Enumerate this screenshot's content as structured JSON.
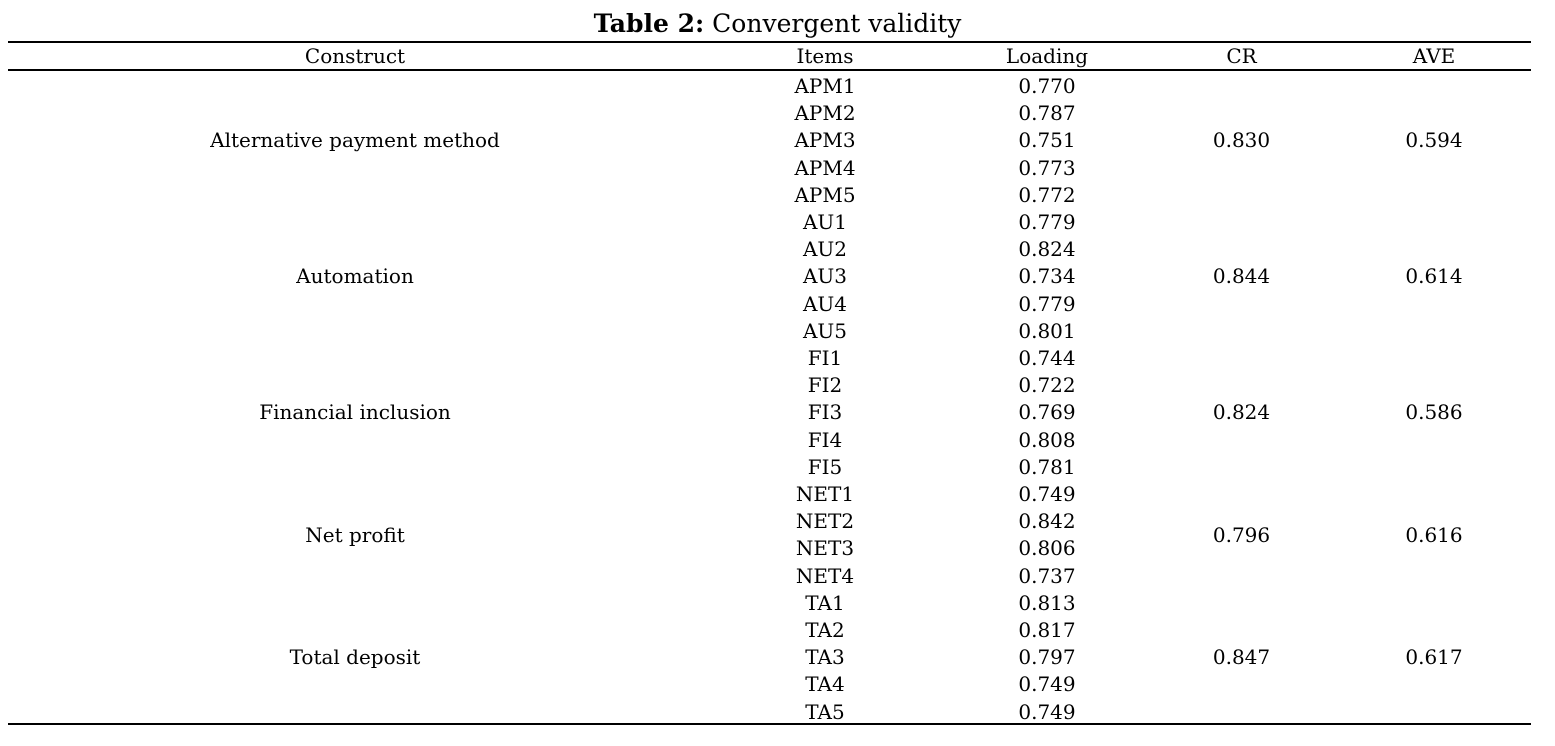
{
  "caption": {
    "label": "Table 2:",
    "text": "Convergent validity"
  },
  "headers": {
    "construct": "Construct",
    "items": "Items",
    "loading": "Loading",
    "cr": "CR",
    "ave": "AVE"
  },
  "groups": [
    {
      "construct": "Alternative payment method",
      "cr": "0.830",
      "ave": "0.594",
      "rows": [
        {
          "item": "APM1",
          "loading": "0.770"
        },
        {
          "item": "APM2",
          "loading": "0.787"
        },
        {
          "item": "APM3",
          "loading": "0.751"
        },
        {
          "item": "APM4",
          "loading": "0.773"
        },
        {
          "item": "APM5",
          "loading": "0.772"
        }
      ]
    },
    {
      "construct": "Automation",
      "cr": "0.844",
      "ave": "0.614",
      "rows": [
        {
          "item": "AU1",
          "loading": "0.779"
        },
        {
          "item": "AU2",
          "loading": "0.824"
        },
        {
          "item": "AU3",
          "loading": "0.734"
        },
        {
          "item": "AU4",
          "loading": "0.779"
        },
        {
          "item": "AU5",
          "loading": "0.801"
        }
      ]
    },
    {
      "construct": "Financial inclusion",
      "cr": "0.824",
      "ave": "0.586",
      "rows": [
        {
          "item": "FI1",
          "loading": "0.744"
        },
        {
          "item": "FI2",
          "loading": "0.722"
        },
        {
          "item": "FI3",
          "loading": "0.769"
        },
        {
          "item": "FI4",
          "loading": "0.808"
        },
        {
          "item": "FI5",
          "loading": "0.781"
        }
      ]
    },
    {
      "construct": "Net profit",
      "cr": "0.796",
      "ave": "0.616",
      "rows": [
        {
          "item": "NET1",
          "loading": "0.749"
        },
        {
          "item": "NET2",
          "loading": "0.842"
        },
        {
          "item": "NET3",
          "loading": "0.806"
        },
        {
          "item": "NET4",
          "loading": "0.737"
        }
      ]
    },
    {
      "construct": "Total deposit",
      "cr": "0.847",
      "ave": "0.617",
      "rows": [
        {
          "item": "TA1",
          "loading": "0.813"
        },
        {
          "item": "TA2",
          "loading": "0.817"
        },
        {
          "item": "TA3",
          "loading": "0.797"
        },
        {
          "item": "TA4",
          "loading": "0.749"
        },
        {
          "item": "TA5",
          "loading": "0.749"
        }
      ]
    }
  ]
}
